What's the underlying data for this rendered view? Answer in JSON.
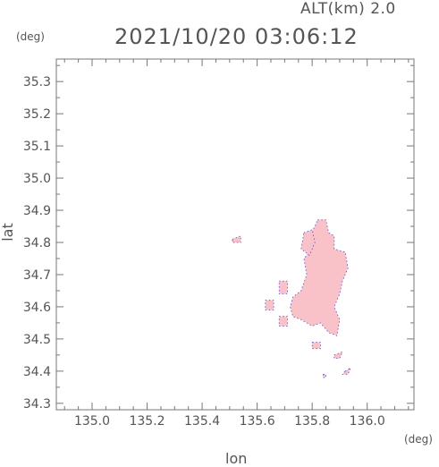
{
  "header": {
    "altitude_label": "ALT(km) 2.0",
    "timestamp": "2021/10/20 03:06:12"
  },
  "axes": {
    "x_unit": "(deg)",
    "y_unit": "(deg)",
    "x_label": "lon",
    "y_label": "lat"
  },
  "chart_data": {
    "type": "heatmap",
    "xlabel": "lon",
    "ylabel": "lat",
    "xlim": [
      134.87,
      136.17
    ],
    "ylim": [
      34.28,
      35.37
    ],
    "x_ticks": [
      "135.0",
      "135.2",
      "135.4",
      "135.6",
      "135.8",
      "136.0"
    ],
    "x_tick_values": [
      135.0,
      135.2,
      135.4,
      135.6,
      135.8,
      136.0
    ],
    "y_ticks": [
      "34.3",
      "34.4",
      "34.5",
      "34.6",
      "34.7",
      "34.8",
      "34.9",
      "35.0",
      "35.1",
      "35.2",
      "35.3"
    ],
    "y_tick_values": [
      34.3,
      34.4,
      34.5,
      34.6,
      34.7,
      34.8,
      34.9,
      35.0,
      35.1,
      35.2,
      35.3
    ],
    "fill_color": "#f8c2c8",
    "edge_color": "#5a4ccc",
    "echo_regions": [
      {
        "name": "main-echo",
        "points": [
          [
            135.82,
            34.87
          ],
          [
            135.85,
            34.87
          ],
          [
            135.86,
            34.83
          ],
          [
            135.88,
            34.82
          ],
          [
            135.88,
            34.78
          ],
          [
            135.92,
            34.77
          ],
          [
            135.93,
            34.72
          ],
          [
            135.91,
            34.68
          ],
          [
            135.9,
            34.64
          ],
          [
            135.88,
            34.6
          ],
          [
            135.9,
            34.56
          ],
          [
            135.89,
            34.51
          ],
          [
            135.86,
            34.52
          ],
          [
            135.83,
            34.55
          ],
          [
            135.8,
            34.54
          ],
          [
            135.78,
            34.55
          ],
          [
            135.76,
            34.56
          ],
          [
            135.73,
            34.57
          ],
          [
            135.72,
            34.6
          ],
          [
            135.73,
            34.63
          ],
          [
            135.76,
            34.65
          ],
          [
            135.78,
            34.7
          ],
          [
            135.77,
            34.75
          ],
          [
            135.8,
            34.78
          ],
          [
            135.79,
            34.82
          ],
          [
            135.81,
            34.85
          ]
        ]
      },
      {
        "name": "north-lobe",
        "points": [
          [
            135.77,
            34.83
          ],
          [
            135.8,
            34.84
          ],
          [
            135.81,
            34.8
          ],
          [
            135.79,
            34.76
          ],
          [
            135.76,
            34.78
          ]
        ]
      },
      {
        "name": "west-cell",
        "points": [
          [
            135.68,
            34.68
          ],
          [
            135.71,
            34.68
          ],
          [
            135.71,
            34.64
          ],
          [
            135.68,
            34.64
          ]
        ]
      },
      {
        "name": "west-small-1",
        "points": [
          [
            135.63,
            34.62
          ],
          [
            135.66,
            34.62
          ],
          [
            135.66,
            34.59
          ],
          [
            135.63,
            34.59
          ]
        ]
      },
      {
        "name": "west-small-2",
        "points": [
          [
            135.68,
            34.57
          ],
          [
            135.71,
            34.57
          ],
          [
            135.71,
            34.54
          ],
          [
            135.68,
            34.54
          ]
        ]
      },
      {
        "name": "south-cell-1",
        "points": [
          [
            135.8,
            34.49
          ],
          [
            135.83,
            34.49
          ],
          [
            135.83,
            34.47
          ],
          [
            135.8,
            34.47
          ]
        ]
      },
      {
        "name": "south-cell-2",
        "points": [
          [
            135.88,
            34.45
          ],
          [
            135.91,
            34.46
          ],
          [
            135.9,
            34.44
          ],
          [
            135.88,
            34.44
          ]
        ]
      },
      {
        "name": "south-cell-3",
        "points": [
          [
            135.92,
            34.4
          ],
          [
            135.94,
            34.41
          ],
          [
            135.93,
            34.39
          ],
          [
            135.91,
            34.39
          ]
        ]
      },
      {
        "name": "south-cell-4",
        "points": [
          [
            135.84,
            34.39
          ],
          [
            135.85,
            34.39
          ],
          [
            135.85,
            34.38
          ],
          [
            135.84,
            34.38
          ]
        ]
      },
      {
        "name": "far-west-speck",
        "points": [
          [
            135.51,
            34.81
          ],
          [
            135.54,
            34.82
          ],
          [
            135.54,
            34.8
          ],
          [
            135.51,
            34.8
          ]
        ]
      }
    ]
  }
}
